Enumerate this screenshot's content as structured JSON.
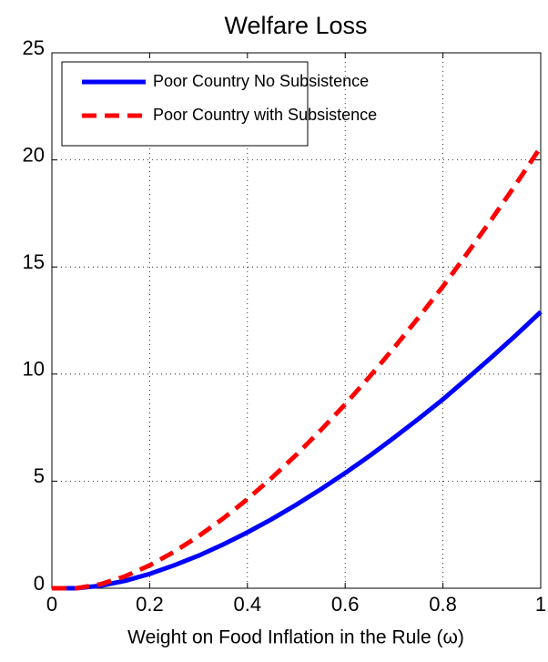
{
  "chart_data": {
    "type": "line",
    "title": "Welfare Loss",
    "x_label": "Weight on Food Inflation in the Rule (ω)",
    "x": [
      0,
      0.05,
      0.1,
      0.15,
      0.2,
      0.25,
      0.3,
      0.35,
      0.4,
      0.45,
      0.5,
      0.55,
      0.6,
      0.65,
      0.7,
      0.75,
      0.8,
      0.85,
      0.9,
      0.95,
      1
    ],
    "series": [
      {
        "name": "Poor Country No Subsistence",
        "color": "#0000ff",
        "dash": "solid",
        "values": [
          0,
          0,
          0.12,
          0.35,
          0.67,
          1.07,
          1.52,
          2.04,
          2.61,
          3.23,
          3.9,
          4.62,
          5.38,
          6.18,
          7.03,
          7.91,
          8.82,
          9.8,
          10.8,
          11.83,
          12.9
        ]
      },
      {
        "name": "Poor Country with Subsistence",
        "color": "#ff0000",
        "dash": "dashed",
        "values": [
          0,
          0,
          0.19,
          0.56,
          1.07,
          1.7,
          2.43,
          3.25,
          4.16,
          5.16,
          6.23,
          7.38,
          8.59,
          9.88,
          11.23,
          12.64,
          14.09,
          15.65,
          17.24,
          18.89,
          20.6
        ]
      }
    ],
    "xlim": [
      0,
      1
    ],
    "xticks": [
      0,
      0.2,
      0.4,
      0.6,
      0.8,
      1
    ],
    "ylim": [
      0,
      25
    ],
    "yticks": [
      0,
      5,
      10,
      15,
      20,
      25
    ],
    "grid": true,
    "legend_position": "upper-left"
  }
}
